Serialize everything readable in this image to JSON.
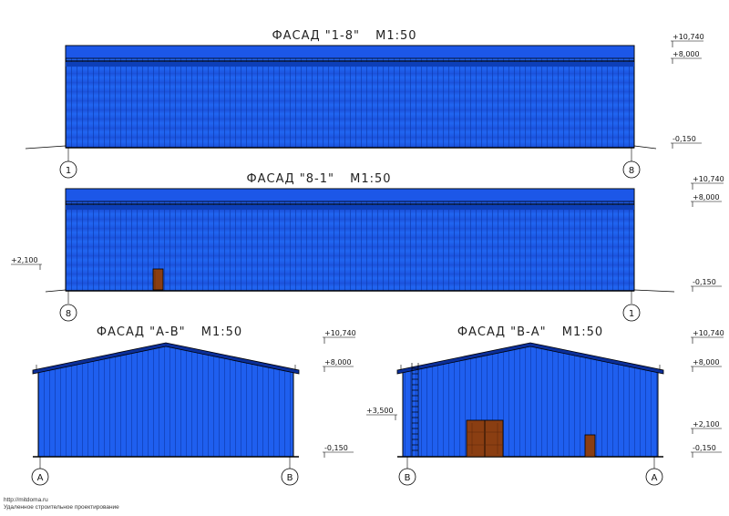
{
  "colors": {
    "cladding": "#1f5ff0",
    "cladding_dark": "#0b2f9a",
    "door": "#8a3e12",
    "line": "#000000"
  },
  "facades": [
    {
      "title": "ФАСАД \"1-8\"",
      "scale": "М1:50",
      "levels": [
        "+10,740",
        "+8,000",
        "-0,150"
      ],
      "axes": [
        "1",
        "8"
      ]
    },
    {
      "title": "ФАСАД \"8-1\"",
      "scale": "М1:50",
      "levels": [
        "+10,740",
        "+8,000",
        "-0,150"
      ],
      "extra_level": "+2,100",
      "axes": [
        "8",
        "1"
      ]
    },
    {
      "title": "ФАСАД \"А-В\"",
      "scale": "М1:50",
      "levels": [
        "+10,740",
        "+8,000",
        "-0,150"
      ],
      "axes": [
        "А",
        "В"
      ]
    },
    {
      "title": "ФАСАД \"В-А\"",
      "scale": "М1:50",
      "levels": [
        "+10,740",
        "+8,000",
        "+2,100",
        "-0,150"
      ],
      "extra_level": "+3,500",
      "axes": [
        "В",
        "А"
      ]
    }
  ],
  "footer": {
    "url": "http://mitdoma.ru",
    "caption": "Удаленное строительное проектирование"
  }
}
